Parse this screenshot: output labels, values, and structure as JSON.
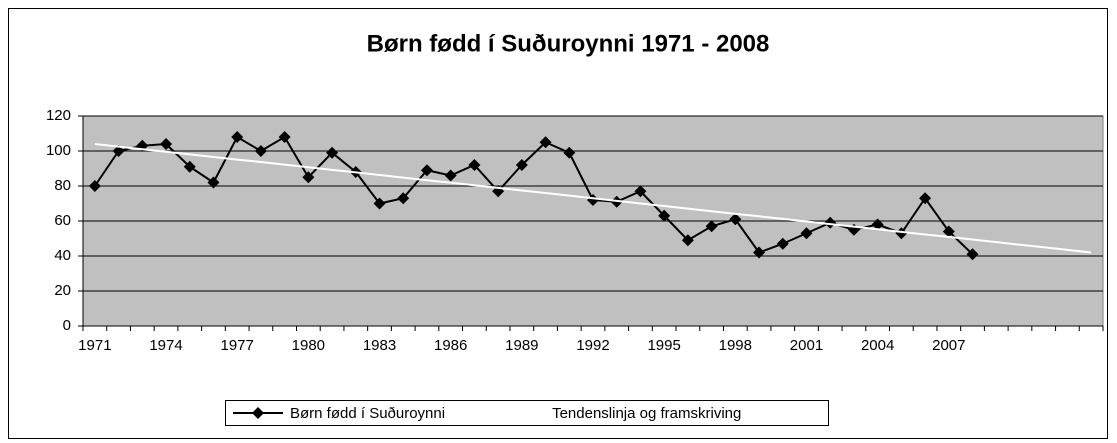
{
  "chart_data": {
    "type": "line",
    "title": "Børn fødd í Suðuroynni 1971 - 2008",
    "categories": [
      "1971",
      null,
      null,
      "1974",
      null,
      null,
      "1977",
      null,
      null,
      "1980",
      null,
      null,
      "1983",
      null,
      null,
      "1986",
      null,
      null,
      "1989",
      null,
      null,
      "1992",
      null,
      null,
      "1995",
      null,
      null,
      "1998",
      null,
      null,
      "2001",
      null,
      null,
      "2004",
      null,
      null,
      "2007",
      null,
      null,
      null,
      null,
      null,
      null
    ],
    "series": [
      {
        "name": "Børn fødd í Suðuroynni",
        "color": "#000000",
        "values": [
          80,
          100,
          103,
          104,
          91,
          82,
          108,
          100,
          108,
          85,
          99,
          88,
          70,
          73,
          89,
          86,
          92,
          77,
          92,
          105,
          99,
          72,
          71,
          77,
          63,
          49,
          57,
          61,
          42,
          47,
          53,
          59,
          55,
          58,
          53,
          73,
          54,
          41,
          null,
          null,
          null,
          null,
          null
        ]
      },
      {
        "name": "Tendenslinja og framskriving",
        "color": "#ffffff",
        "values": [
          104,
          102.5,
          101,
          99.6,
          98.1,
          96.6,
          95.1,
          93.7,
          92.2,
          90.7,
          89.2,
          87.8,
          86.3,
          84.8,
          83.3,
          81.9,
          80.4,
          78.9,
          77.4,
          76,
          74.5,
          73,
          71.5,
          70,
          68.6,
          67.1,
          65.6,
          64.1,
          62.7,
          61.2,
          59.7,
          58.2,
          56.8,
          55.3,
          53.8,
          52.3,
          50.9,
          49.4,
          47.9,
          46.4,
          45,
          43.5,
          42
        ]
      }
    ],
    "ylim": [
      0,
      120
    ],
    "yticks": [
      0,
      20,
      40,
      60,
      80,
      100,
      120
    ],
    "grid": true,
    "legend": "bottom"
  }
}
